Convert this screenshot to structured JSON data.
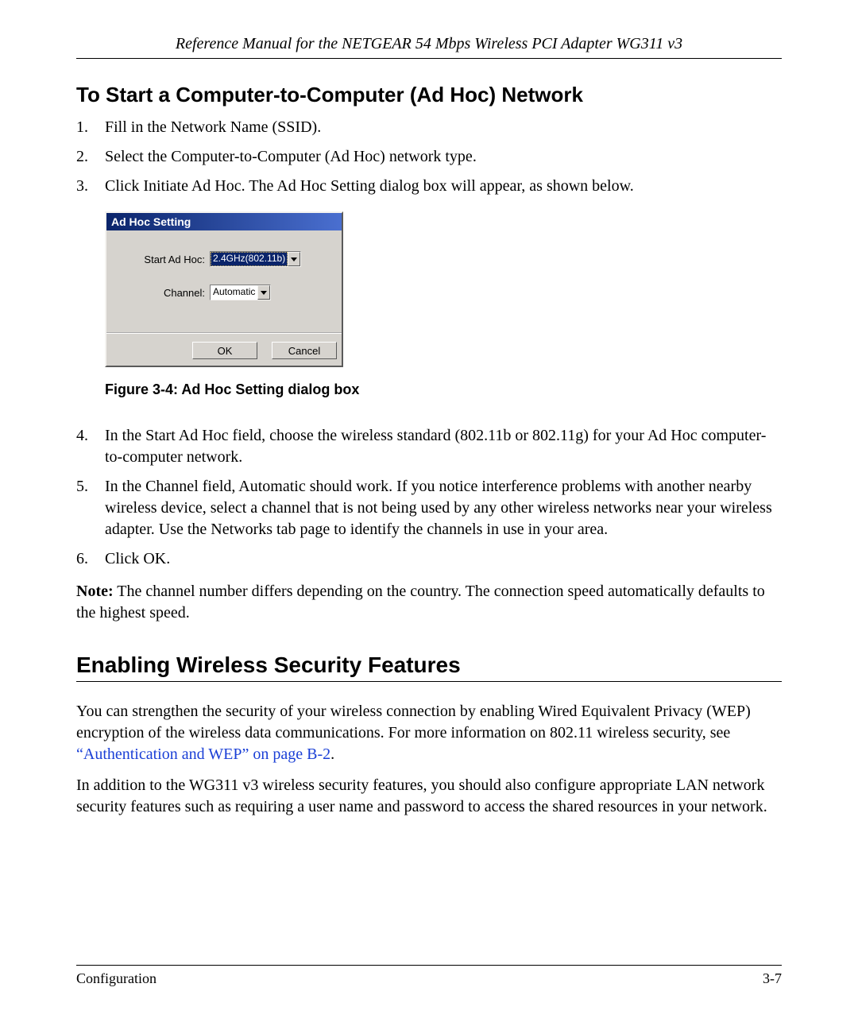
{
  "header": {
    "running_title": "Reference Manual for the NETGEAR 54 Mbps Wireless PCI Adapter WG311 v3"
  },
  "section1": {
    "heading": "To Start a Computer-to-Computer (Ad Hoc) Network",
    "steps_a": [
      "Fill in the Network Name (SSID).",
      "Select the Computer-to-Computer (Ad Hoc) network type.",
      "Click Initiate Ad Hoc. The Ad Hoc Setting dialog box will appear, as shown below."
    ],
    "steps_b": [
      "In the Start Ad Hoc field, choose the wireless standard (802.11b or 802.11g) for your Ad Hoc computer-to-computer network.",
      "In the Channel field, Automatic should work. If you notice interference problems with another nearby wireless device, select a channel that is not being used by any other wireless networks near your wireless adapter. Use the Networks tab page to identify the channels in use in your area.",
      "Click OK."
    ],
    "note_label": "Note:",
    "note_text": " The channel number differs depending on the country. The connection speed automatically defaults to the highest speed."
  },
  "dialog": {
    "title": "Ad Hoc Setting",
    "row1_label": "Start Ad Hoc:",
    "row1_value": "2.4GHz(802.11b)",
    "row2_label": "Channel:",
    "row2_value": "Automatic",
    "ok": "OK",
    "cancel": "Cancel",
    "colors": {
      "titlebar_start": "#0a246a",
      "titlebar_end": "#4a6fd0",
      "face": "#d6d3ce",
      "highlight_bg": "#0a246a",
      "highlight_fg": "#ffffff"
    }
  },
  "figure": {
    "caption": "Figure 3-4:  Ad Hoc Setting dialog box"
  },
  "section2": {
    "heading": "Enabling Wireless Security Features",
    "para1_a": "You can strengthen the security of your wireless connection by enabling Wired Equivalent Privacy (WEP) encryption of the wireless data communications. For more information on 802.11 wireless security, see ",
    "para1_link": "“Authentication and WEP” on page B-2",
    "para1_b": ".",
    "para2": "In addition to the WG311 v3 wireless security features, you should also configure appropriate LAN network security features such as requiring a user name and password to access the shared resources in your network.",
    "link_color": "#1a3fd6"
  },
  "footer": {
    "left": "Configuration",
    "right": "3-7"
  }
}
